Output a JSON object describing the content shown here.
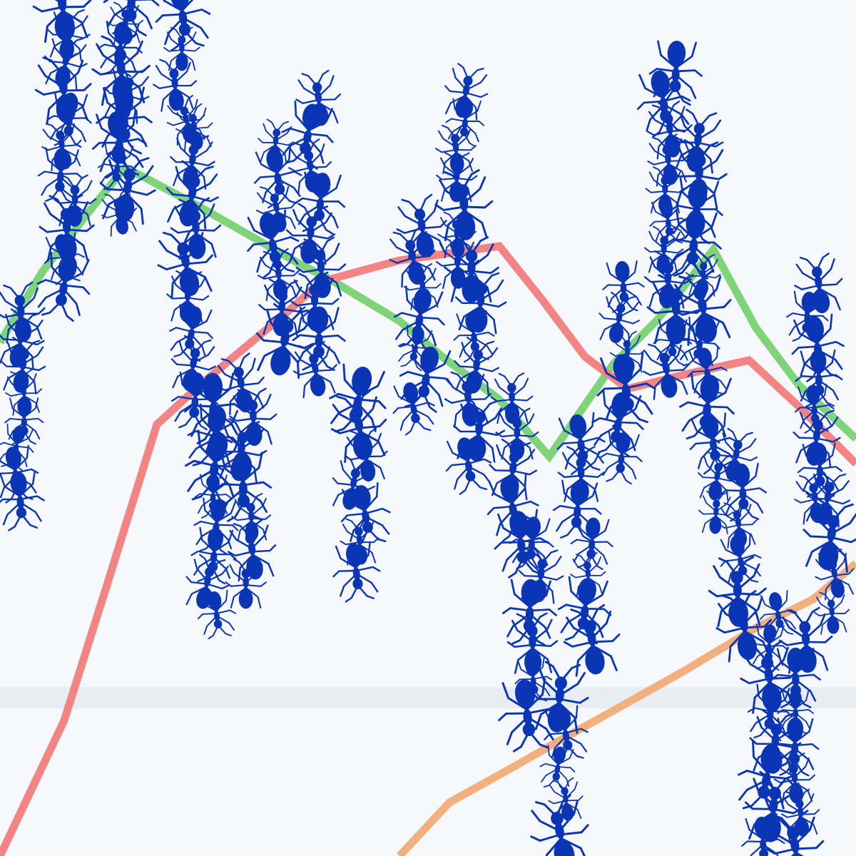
{
  "colors": {
    "background": "#f6f8fb",
    "band": "#e8edf3",
    "ant": "#0a35b5",
    "line_green": "#7fd47a",
    "line_red": "#f28583",
    "line_orange": "#f2b07e"
  },
  "lines": [
    {
      "name": "",
      "color_key": "line_green"
    },
    {
      "name": "",
      "color_key": "line_red"
    },
    {
      "name": "",
      "color_key": "line_orange"
    }
  ],
  "decor": {
    "subject": "ant-columns",
    "icon": "ant-icon"
  }
}
